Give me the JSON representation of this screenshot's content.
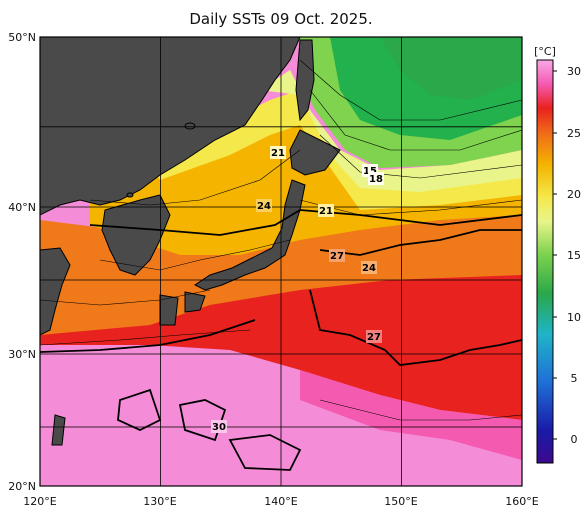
{
  "title": "Daily SSTs 09 Oct. 2025.",
  "map": {
    "lat_ticks": [
      "50°N",
      "40°N",
      "30°N",
      "20°N"
    ],
    "lon_ticks": [
      "120°E",
      "130°E",
      "140°E",
      "150°E",
      "160°E"
    ],
    "extent": {
      "lon": [
        120,
        160
      ],
      "lat": [
        20,
        50
      ]
    },
    "contour_labels": [
      "21",
      "15",
      "18",
      "24",
      "21",
      "27",
      "24",
      "27",
      "30"
    ],
    "colors": {
      "land": "#4a4a4a",
      "cold": "#22b14c",
      "cool": "#7fd34e",
      "mild": "#f5e84a",
      "warm": "#f4b400",
      "orange": "#f07a1a",
      "red": "#e8221e",
      "hot": "#f45ab0",
      "hottest": "#f58cd7"
    }
  },
  "colorbar": {
    "unit": "[°C]",
    "ticks": [
      "30",
      "25",
      "20",
      "15",
      "10",
      "5",
      "0"
    ],
    "range": [
      -2,
      32
    ]
  }
}
